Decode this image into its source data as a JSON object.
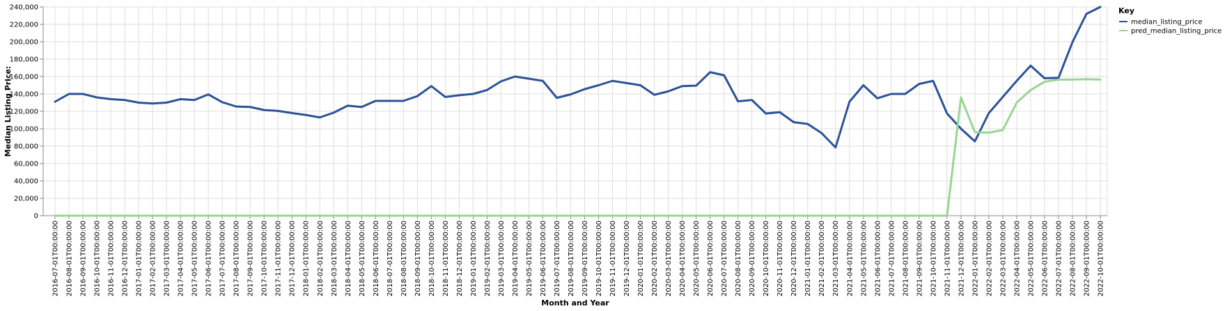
{
  "chart_data": {
    "type": "line",
    "xlabel": "Month and Year",
    "ylabel": "Median Listing Price:",
    "ylim": [
      0,
      240000
    ],
    "yticks": [
      0,
      20000,
      40000,
      60000,
      80000,
      100000,
      120000,
      140000,
      160000,
      180000,
      200000,
      220000,
      240000
    ],
    "ytick_labels": [
      "0",
      "20,000",
      "40,000",
      "60,000",
      "80,000",
      "100,000",
      "120,000",
      "140,000",
      "160,000",
      "180,000",
      "200,000",
      "220,000",
      "240,000"
    ],
    "grid": true,
    "legend": {
      "title": "Key",
      "position": "right"
    },
    "x": [
      "2016-07-01T00:00:00",
      "2016-08-01T00:00:00",
      "2016-09-01T00:00:00",
      "2016-10-01T00:00:00",
      "2016-11-01T00:00:00",
      "2016-12-01T00:00:00",
      "2017-01-01T00:00:00",
      "2017-02-01T00:00:00",
      "2017-03-01T00:00:00",
      "2017-04-01T00:00:00",
      "2017-05-01T00:00:00",
      "2017-06-01T00:00:00",
      "2017-07-01T00:00:00",
      "2017-08-01T00:00:00",
      "2017-09-01T00:00:00",
      "2017-10-01T00:00:00",
      "2017-11-01T00:00:00",
      "2017-12-01T00:00:00",
      "2018-01-01T00:00:00",
      "2018-02-01T00:00:00",
      "2018-03-01T00:00:00",
      "2018-04-01T00:00:00",
      "2018-05-01T00:00:00",
      "2018-06-01T00:00:00",
      "2018-07-01T00:00:00",
      "2018-08-01T00:00:00",
      "2018-09-01T00:00:00",
      "2018-10-01T00:00:00",
      "2018-11-01T00:00:00",
      "2018-12-01T00:00:00",
      "2019-01-01T00:00:00",
      "2019-02-01T00:00:00",
      "2019-03-01T00:00:00",
      "2019-04-01T00:00:00",
      "2019-05-01T00:00:00",
      "2019-06-01T00:00:00",
      "2019-07-01T00:00:00",
      "2019-08-01T00:00:00",
      "2019-09-01T00:00:00",
      "2019-10-01T00:00:00",
      "2019-11-01T00:00:00",
      "2019-12-01T00:00:00",
      "2020-01-01T00:00:00",
      "2020-02-01T00:00:00",
      "2020-03-01T00:00:00",
      "2020-04-01T00:00:00",
      "2020-05-01T00:00:00",
      "2020-06-01T00:00:00",
      "2020-07-01T00:00:00",
      "2020-08-01T00:00:00",
      "2020-09-01T00:00:00",
      "2020-10-01T00:00:00",
      "2020-11-01T00:00:00",
      "2020-12-01T00:00:00",
      "2021-01-01T00:00:00",
      "2021-02-01T00:00:00",
      "2021-03-01T00:00:00",
      "2021-04-01T00:00:00",
      "2021-05-01T00:00:00",
      "2021-06-01T00:00:00",
      "2021-07-01T00:00:00",
      "2021-08-01T00:00:00",
      "2021-09-01T00:00:00",
      "2021-10-01T00:00:00",
      "2021-11-01T00:00:00",
      "2021-12-01T00:00:00",
      "2022-01-01T00:00:00",
      "2022-02-01T00:00:00",
      "2022-03-01T00:00:00",
      "2022-04-01T00:00:00",
      "2022-05-01T00:00:00",
      "2022-06-01T00:00:00",
      "2022-07-01T00:00:00",
      "2022-08-01T00:00:00",
      "2022-09-01T00:00:00",
      "2022-10-01T00:00:00"
    ],
    "series": [
      {
        "name": "median_listing_price",
        "color": "#2a5297",
        "values": [
          131000,
          140000,
          140000,
          136000,
          134000,
          133000,
          130000,
          129000,
          130000,
          134000,
          133000,
          139500,
          130500,
          125500,
          125000,
          121500,
          120500,
          118000,
          115800,
          113000,
          118500,
          126500,
          125000,
          132000,
          132000,
          132000,
          137500,
          149000,
          136500,
          138500,
          140000,
          144500,
          154500,
          160000,
          157500,
          155000,
          135500,
          139500,
          145500,
          150000,
          155000,
          152500,
          150000,
          139000,
          143000,
          149000,
          149500,
          165000,
          161500,
          131500,
          133000,
          117500,
          119000,
          107500,
          105500,
          95000,
          78500,
          131000,
          150000,
          135000,
          140000,
          140000,
          151500,
          155000,
          117500,
          100000,
          85500,
          118000,
          136500,
          155000,
          172500,
          158000,
          158500,
          199500,
          232000,
          240000
        ]
      },
      {
        "name": "pred_median_listing_price",
        "color": "#98d593",
        "values": [
          0,
          0,
          0,
          0,
          0,
          0,
          0,
          0,
          0,
          0,
          0,
          0,
          0,
          0,
          0,
          0,
          0,
          0,
          0,
          0,
          0,
          0,
          0,
          0,
          0,
          0,
          0,
          0,
          0,
          0,
          0,
          0,
          0,
          0,
          0,
          0,
          0,
          0,
          0,
          0,
          0,
          0,
          0,
          0,
          0,
          0,
          0,
          0,
          0,
          0,
          0,
          0,
          0,
          0,
          0,
          0,
          0,
          0,
          0,
          0,
          0,
          0,
          0,
          0,
          0,
          136000,
          96000,
          95500,
          98500,
          130000,
          144500,
          154000,
          156500,
          156500,
          157000,
          156500
        ]
      }
    ]
  }
}
